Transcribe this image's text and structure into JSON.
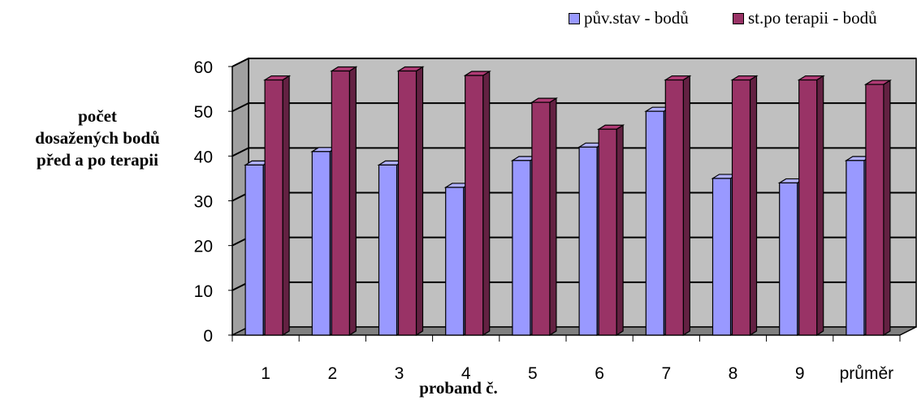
{
  "chart_data": {
    "type": "bar",
    "categories": [
      "1",
      "2",
      "3",
      "4",
      "5",
      "6",
      "7",
      "8",
      "9",
      "průměr"
    ],
    "series": [
      {
        "name": "pův.stav - bodů",
        "values": [
          38,
          41,
          38,
          33,
          39,
          42,
          50,
          35,
          34,
          39
        ],
        "color": "#9999FF"
      },
      {
        "name": "st.po terapii - bodů",
        "values": [
          57,
          59,
          59,
          58,
          52,
          46,
          57,
          57,
          57,
          56
        ],
        "color": "#993366"
      }
    ],
    "title": "",
    "xlabel": "proband č.",
    "ylabel": "počet dosažených bodů před a po terapii",
    "ylabel_lines": [
      "počet",
      "dosažených bodů",
      "před a po terapii"
    ],
    "ylim": [
      0,
      60
    ],
    "yticks": [
      0,
      10,
      20,
      30,
      40,
      50,
      60
    ],
    "grid": true,
    "legend_position": "top-right",
    "style": "3d",
    "wall_color": "#C0C0C0",
    "floor_color": "#808080"
  }
}
